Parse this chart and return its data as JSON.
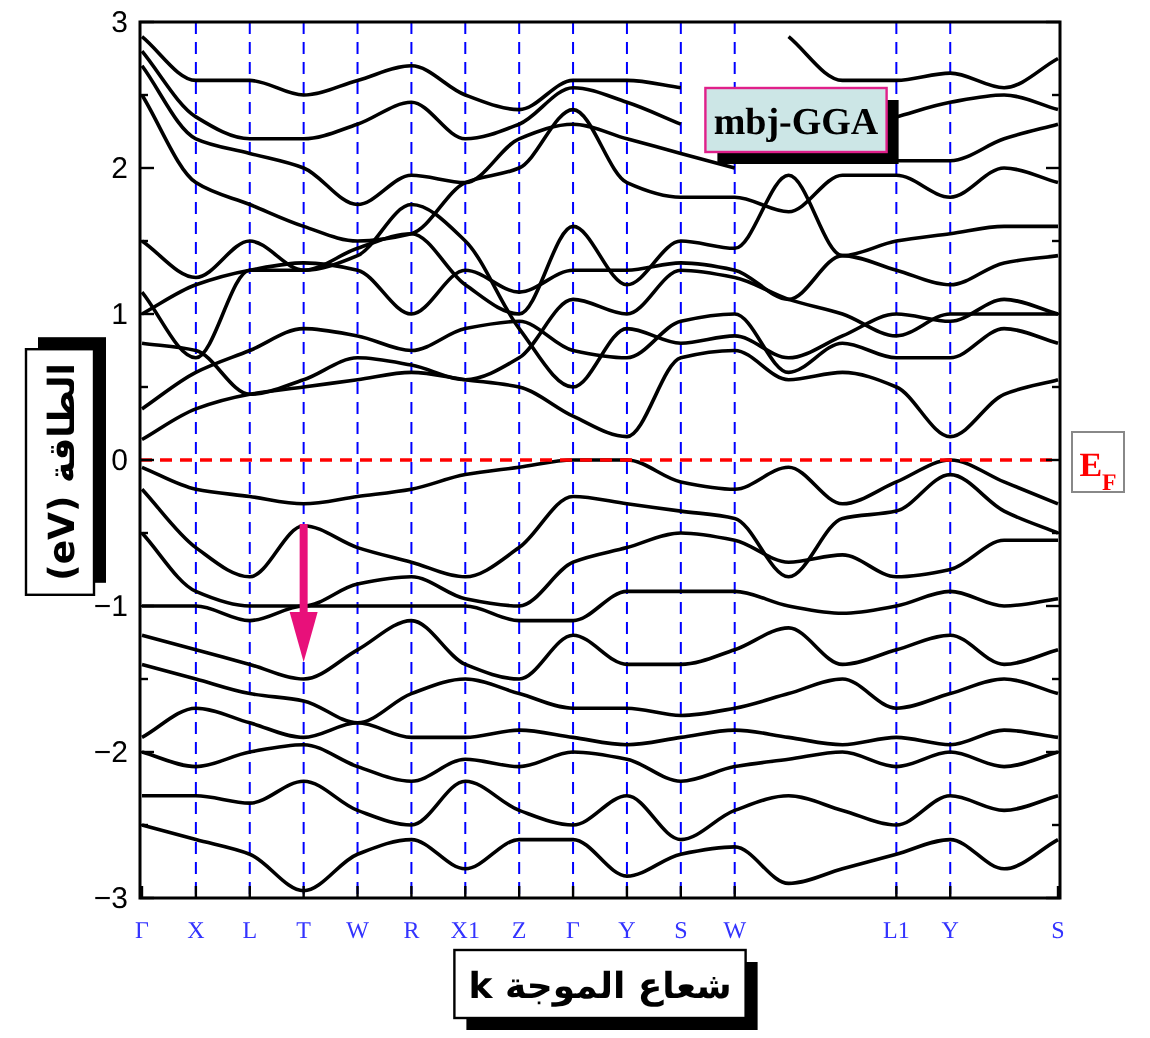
{
  "chart_data": {
    "type": "line",
    "xlabel": "شعاع الموجة k",
    "ylabel": "الطاقة (eV)",
    "annotations": [
      "mbj-GGA"
    ],
    "categories": [
      "Γ",
      "X",
      "L",
      "T",
      "W",
      "R",
      "X1",
      "Z",
      "Γ",
      "Y",
      "S",
      "W",
      null,
      null,
      "L1",
      "Y",
      null,
      "S"
    ],
    "grid": "x",
    "ylim": [
      -3,
      3
    ],
    "yticks": [
      -3,
      {
        "value": -2.5,
        "label": null
      },
      -2,
      {
        "value": -1.5,
        "label": null
      },
      -1,
      {
        "value": -0.5,
        "label": null
      },
      0,
      {
        "value": 0.5,
        "label": null
      },
      1,
      {
        "value": 1.5,
        "label": null
      },
      2,
      {
        "value": 2.5,
        "label": null
      },
      3
    ],
    "ref_lines": [
      {
        "axis": "y",
        "value": 0,
        "label": "E$_{F}$",
        "color": "#ff0000",
        "line_style": "dashed"
      }
    ],
    "series": [
      {
        "color": "#000000",
        "values": [
          0.14,
          0.35,
          0.45,
          0.5,
          0.55,
          0.6,
          0.55,
          0.5,
          0.3,
          0.16,
          0.7,
          0.75,
          0.55,
          0.6,
          0.5,
          0.16,
          0.45,
          0.55
        ]
      },
      {
        "color": "#000000",
        "values": [
          0.35,
          0.6,
          0.75,
          0.9,
          0.85,
          0.75,
          0.9,
          0.95,
          0.75,
          0.7,
          0.95,
          1.0,
          0.6,
          0.8,
          0.7,
          0.7,
          0.9,
          0.8
        ]
      },
      {
        "color": "#000000",
        "values": [
          0.8,
          0.75,
          0.45,
          0.55,
          0.7,
          0.65,
          0.55,
          0.7,
          1.1,
          1.0,
          1.3,
          1.25,
          1.1,
          1.0,
          0.85,
          1.0,
          1.0,
          1.0
        ]
      },
      {
        "color": "#000000",
        "values": [
          1.0,
          1.2,
          1.3,
          1.35,
          1.3,
          1.0,
          1.3,
          1.15,
          1.3,
          1.3,
          1.35,
          1.3,
          1.1,
          1.4,
          1.3,
          1.2,
          1.35,
          1.4
        ]
      },
      {
        "color": "#000000",
        "values": [
          1.15,
          0.7,
          1.3,
          1.3,
          1.45,
          1.55,
          1.2,
          1.0,
          1.6,
          1.2,
          1.5,
          1.45,
          1.95,
          1.4,
          1.5,
          1.55,
          1.6,
          1.6
        ]
      },
      {
        "color": "#000000",
        "values": [
          1.5,
          1.25,
          1.5,
          1.3,
          1.4,
          1.75,
          1.5,
          0.9,
          0.5,
          0.9,
          0.8,
          0.85,
          0.7,
          0.85,
          1.0,
          0.95,
          1.1,
          1.0
        ]
      },
      {
        "color": "#000000",
        "values": [
          2.5,
          1.9,
          1.75,
          1.6,
          1.5,
          1.55,
          1.9,
          2.0,
          2.4,
          1.9,
          1.8,
          1.8,
          1.7,
          1.95,
          1.95,
          1.8,
          2.0,
          1.9
        ]
      },
      {
        "color": "#000000",
        "values": [
          2.7,
          2.2,
          2.1,
          2.0,
          1.75,
          1.95,
          1.9,
          2.2,
          2.3,
          2.2,
          2.1,
          2.0,
          null,
          null,
          2.05,
          2.05,
          2.2,
          2.3
        ]
      },
      {
        "color": "#000000",
        "values": [
          2.8,
          2.35,
          2.2,
          2.2,
          2.3,
          2.45,
          2.2,
          2.3,
          2.55,
          2.45,
          2.3,
          null,
          null,
          null,
          2.35,
          2.45,
          2.5,
          2.4
        ]
      },
      {
        "color": "#000000",
        "values": [
          2.9,
          2.6,
          2.6,
          2.5,
          2.6,
          2.7,
          2.5,
          2.4,
          2.6,
          2.6,
          2.55,
          null,
          2.9,
          2.6,
          2.6,
          2.65,
          2.55,
          2.75
        ]
      },
      {
        "color": "#000000",
        "values": [
          -0.05,
          -0.2,
          -0.25,
          -0.3,
          -0.25,
          -0.2,
          -0.1,
          -0.05,
          0.0,
          0.0,
          -0.15,
          -0.2,
          -0.05,
          -0.3,
          -0.15,
          0.0,
          -0.15,
          -0.3
        ]
      },
      {
        "color": "#000000",
        "values": [
          -0.2,
          -0.6,
          -0.8,
          -0.45,
          -0.6,
          -0.7,
          -0.8,
          -0.6,
          -0.25,
          -0.3,
          -0.35,
          -0.4,
          -0.8,
          -0.4,
          -0.35,
          -0.1,
          -0.35,
          -0.5
        ]
      },
      {
        "color": "#000000",
        "values": [
          -0.5,
          -0.9,
          -1.0,
          -1.0,
          -0.85,
          -0.8,
          -0.95,
          -1.0,
          -0.7,
          -0.6,
          -0.5,
          -0.55,
          -0.7,
          -0.65,
          -0.8,
          -0.75,
          -0.55,
          -0.55
        ]
      },
      {
        "color": "#000000",
        "values": [
          -1.0,
          -1.0,
          -1.1,
          -1.0,
          -1.0,
          -1.0,
          -1.0,
          -1.1,
          -1.1,
          -0.9,
          -0.9,
          -0.9,
          -1.0,
          -1.05,
          -1.0,
          -0.9,
          -1.0,
          -0.95
        ]
      },
      {
        "color": "#000000",
        "values": [
          -1.2,
          -1.3,
          -1.4,
          -1.5,
          -1.3,
          -1.1,
          -1.4,
          -1.5,
          -1.2,
          -1.4,
          -1.4,
          -1.3,
          -1.15,
          -1.4,
          -1.3,
          -1.2,
          -1.4,
          -1.3
        ]
      },
      {
        "color": "#000000",
        "values": [
          -1.4,
          -1.5,
          -1.6,
          -1.65,
          -1.8,
          -1.6,
          -1.5,
          -1.6,
          -1.7,
          -1.7,
          -1.75,
          -1.7,
          -1.6,
          -1.5,
          -1.7,
          -1.6,
          -1.5,
          -1.6
        ]
      },
      {
        "color": "#000000",
        "values": [
          -1.9,
          -1.7,
          -1.8,
          -1.9,
          -1.8,
          -1.9,
          -1.9,
          -1.85,
          -1.9,
          -1.95,
          -1.9,
          -1.85,
          -1.9,
          -1.95,
          -1.9,
          -1.95,
          -1.85,
          -1.9
        ]
      },
      {
        "color": "#000000",
        "values": [
          -2.0,
          -2.1,
          -2.0,
          -1.95,
          -2.1,
          -2.2,
          -2.05,
          -2.1,
          -2.0,
          -2.05,
          -2.2,
          -2.1,
          -2.05,
          -2.0,
          -2.1,
          -2.0,
          -2.1,
          -2.0
        ]
      },
      {
        "color": "#000000",
        "values": [
          -2.3,
          -2.3,
          -2.35,
          -2.2,
          -2.4,
          -2.5,
          -2.2,
          -2.4,
          -2.5,
          -2.3,
          -2.6,
          -2.4,
          -2.3,
          -2.4,
          -2.5,
          -2.3,
          -2.4,
          -2.3
        ]
      },
      {
        "color": "#000000",
        "values": [
          -2.5,
          -2.6,
          -2.7,
          -2.95,
          -2.7,
          -2.6,
          -2.8,
          -2.6,
          -2.6,
          -2.85,
          -2.7,
          -2.65,
          -2.9,
          -2.8,
          -2.7,
          -2.6,
          -2.8,
          -2.6
        ]
      }
    ]
  }
}
